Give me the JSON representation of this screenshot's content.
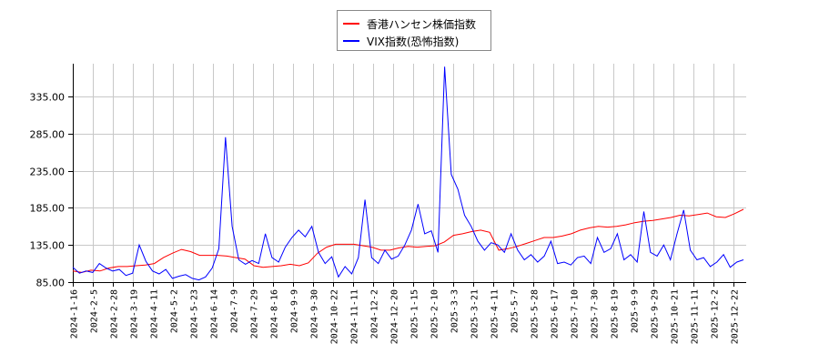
{
  "chart_data": {
    "type": "line",
    "title": "",
    "xlabel": "",
    "ylabel": "",
    "ylim": [
      85,
      379
    ],
    "yticks": [
      85,
      135,
      185,
      235,
      285,
      335
    ],
    "ytick_labels": [
      "85.00",
      "135.00",
      "185.00",
      "235.00",
      "285.00",
      "335.00"
    ],
    "grid": true,
    "legend_position": "top-center",
    "x_tick_labels": [
      "2024-1-16",
      "2024-2-5",
      "2024-2-28",
      "2024-3-19",
      "2024-4-11",
      "2024-5-2",
      "2024-5-23",
      "2024-6-14",
      "2024-7-9",
      "2024-7-29",
      "2024-8-16",
      "2024-9-9",
      "2024-9-30",
      "2024-10-22",
      "2024-11-11",
      "2024-12-2",
      "2024-12-20",
      "2025-1-15",
      "2025-2-10",
      "2025-3-3",
      "2025-3-21",
      "2025-4-11",
      "2025-5-7",
      "2025-5-28",
      "2025-6-17",
      "2025-7-10",
      "2025-7-30",
      "2025-8-19",
      "2025-9-9",
      "2025-9-29",
      "2025-10-21",
      "2025-11-11",
      "2025-12-2",
      "2025-12-22"
    ],
    "series": [
      {
        "name": "香港ハンセン株価指数",
        "color": "#ff0000",
        "values": [
          100,
          98,
          101,
          100,
          104,
          106,
          106,
          107,
          108,
          110,
          118,
          124,
          129,
          126,
          121,
          121,
          121,
          120,
          118,
          116,
          107,
          105,
          106,
          107,
          109,
          107,
          111,
          124,
          132,
          136,
          136,
          136,
          134,
          132,
          128,
          128,
          131,
          133,
          132,
          133,
          134,
          139,
          148,
          150,
          153,
          155,
          152,
          128,
          130,
          133,
          137,
          141,
          145,
          145,
          147,
          150,
          155,
          158,
          160,
          159,
          160,
          162,
          165,
          167,
          168,
          170,
          172,
          175,
          174,
          176,
          178,
          173,
          172,
          177,
          183
        ]
      },
      {
        "name": "VIX指数(恐怖指数)",
        "color": "#0000ff",
        "values": [
          105,
          97,
          100,
          98,
          110,
          104,
          100,
          102,
          94,
          97,
          135,
          113,
          100,
          96,
          102,
          90,
          93,
          95,
          90,
          88,
          92,
          104,
          130,
          280,
          160,
          115,
          109,
          114,
          110,
          150,
          118,
          112,
          132,
          145,
          155,
          146,
          160,
          125,
          110,
          119,
          92,
          106,
          96,
          118,
          196,
          118,
          110,
          128,
          116,
          120,
          135,
          155,
          190,
          150,
          154,
          125,
          375,
          230,
          210,
          175,
          160,
          140,
          128,
          138,
          135,
          125,
          150,
          128,
          115,
          122,
          112,
          120,
          140,
          110,
          112,
          108,
          118,
          120,
          110,
          145,
          125,
          130,
          150,
          115,
          122,
          112,
          180,
          125,
          120,
          135,
          115,
          150,
          182,
          128,
          115,
          118,
          106,
          112,
          122,
          105,
          112,
          115
        ]
      }
    ]
  },
  "legend": {
    "items": [
      {
        "label": "香港ハンセン株価指数",
        "color": "#ff0000"
      },
      {
        "label": "VIX指数(恐怖指数)",
        "color": "#0000ff"
      }
    ]
  }
}
